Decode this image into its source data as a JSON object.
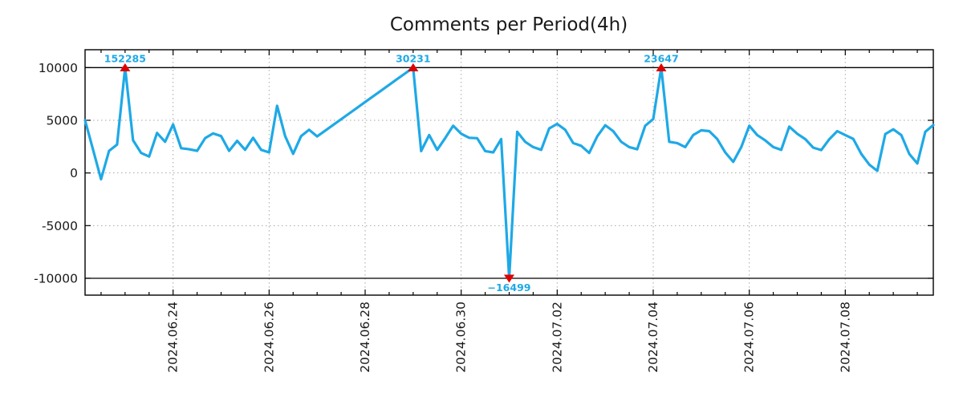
{
  "chart_data": {
    "type": "line",
    "title": "Comments per Period(4h)",
    "x_step": "4h",
    "values": [
      5000,
      2200,
      -600,
      2100,
      2700,
      10000,
      3100,
      1900,
      1560,
      3800,
      2960,
      4600,
      2350,
      2250,
      2100,
      3300,
      3750,
      3500,
      2100,
      3050,
      2200,
      3340,
      2200,
      1950,
      6380,
      3500,
      1820,
      3500,
      4100,
      3470,
      4014,
      4558,
      5102,
      5646,
      6190,
      6734,
      7278,
      7822,
      8366,
      8910,
      9455,
      10000,
      2075,
      3600,
      2200,
      3300,
      4480,
      3720,
      3340,
      3300,
      2075,
      1950,
      3215,
      -10000,
      3900,
      2960,
      2455,
      2200,
      4230,
      4660,
      4100,
      2840,
      2580,
      1900,
      3470,
      4530,
      3975,
      2960,
      2455,
      2250,
      4480,
      5120,
      10000,
      2960,
      2840,
      2455,
      3600,
      4050,
      3975,
      3215,
      1950,
      1055,
      2455,
      4480,
      3600,
      3090,
      2455,
      2200,
      4400,
      3720,
      3210,
      2400,
      2175,
      3200,
      3970,
      3600,
      3235,
      1800,
      800,
      200,
      3700,
      4150,
      3600,
      1800,
      900,
      3900,
      4550
    ],
    "clip_note": "spikes clipped at +/-10000; true extreme values shown as annotations",
    "ylim": [
      -11600,
      11700
    ],
    "y_ticks": [
      {
        "v": 10000,
        "label": "10000"
      },
      {
        "v": 5000,
        "label": "5000"
      },
      {
        "v": 0,
        "label": "0"
      },
      {
        "v": -5000,
        "label": "-5000"
      },
      {
        "v": -10000,
        "label": "-10000"
      }
    ],
    "y_grid_dashed": [
      5000,
      0,
      -5000
    ],
    "y_solid_lines": [
      10000,
      -10000
    ],
    "x_ticks": [
      {
        "i": 11,
        "label": "2024.06.24"
      },
      {
        "i": 23,
        "label": "2024.06.26"
      },
      {
        "i": 35,
        "label": "2024.06.28"
      },
      {
        "i": 47,
        "label": "2024.06.30"
      },
      {
        "i": 59,
        "label": "2024.07.02"
      },
      {
        "i": 71,
        "label": "2024.07.04"
      },
      {
        "i": 83,
        "label": "2024.07.06"
      },
      {
        "i": 95,
        "label": "2024.07.08"
      }
    ],
    "minor_tick_every_points": 3,
    "annotations": [
      {
        "i": 5,
        "label": "152285",
        "true_value": 152285,
        "marker": "triangle-up",
        "clip": 10000
      },
      {
        "i": 41,
        "label": "30231",
        "true_value": 30231,
        "marker": "triangle-up",
        "clip": 10000
      },
      {
        "i": 53,
        "label": "−16499",
        "true_value": -16499,
        "marker": "triangle-down",
        "clip": -10000
      },
      {
        "i": 72,
        "label": "23647",
        "true_value": 23647,
        "marker": "triangle-up",
        "clip": 10000
      }
    ],
    "grid": true,
    "legend": false,
    "colors": {
      "line": "#1ea9e6",
      "marker": "#e00000",
      "annotation_text": "#1ea9e6",
      "grid": "#a6a6a6",
      "axis": "#000000",
      "title": "#1a1a1a",
      "tick_label": "#1a1a1a",
      "background": "#ffffff"
    }
  }
}
